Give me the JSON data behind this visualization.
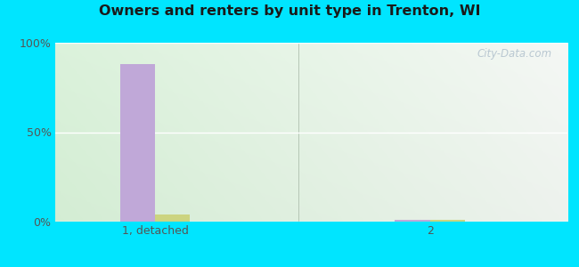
{
  "title": "Owners and renters by unit type in Trenton, WI",
  "categories": [
    "1, detached",
    "2"
  ],
  "owner_values": [
    88,
    1
  ],
  "renter_values": [
    4,
    1
  ],
  "owner_color": "#c0a8d8",
  "renter_color": "#ccd480",
  "ylim": [
    0,
    100
  ],
  "yticks": [
    0,
    50,
    100
  ],
  "ytick_labels": [
    "0%",
    "50%",
    "100%"
  ],
  "outer_bg": "#00e5ff",
  "watermark": "City-Data.com",
  "bar_width": 0.28,
  "group_positions": [
    1.0,
    3.2
  ],
  "xlim": [
    0.2,
    4.3
  ],
  "separator_x": 2.15
}
